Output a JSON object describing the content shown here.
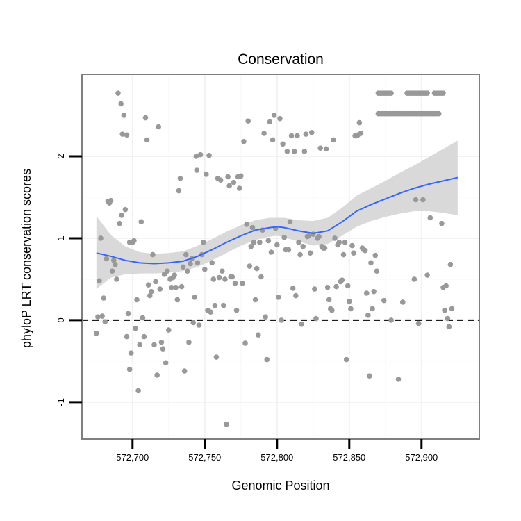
{
  "chart_data": {
    "type": "scatter",
    "title": "Conservation",
    "xlabel": "Genomic Position",
    "ylabel": "phyloP LRT conservation scores",
    "xlim": [
      572665,
      572940
    ],
    "ylim": [
      -1.45,
      3.0
    ],
    "x_ticks": [
      572700,
      572750,
      572800,
      572850,
      572900
    ],
    "x_tick_labels": [
      "572,700",
      "572,750",
      "572,800",
      "572,850",
      "572,900"
    ],
    "y_ticks": [
      -1,
      0,
      1,
      2
    ],
    "y_tick_labels": [
      "-1",
      "0",
      "1",
      "2"
    ],
    "grid": true,
    "reference_line": {
      "y": 0,
      "style": "dashed"
    },
    "colors": {
      "points": "#999999",
      "smooth": "#3366ff",
      "band": "#d9d9d9",
      "panel_border": "#7f7f7f",
      "grid": "#f2f2f2"
    },
    "points": [
      [
        572675,
        -0.16
      ],
      [
        572676,
        0.04
      ],
      [
        572677,
        0.48
      ],
      [
        572678,
        1.0
      ],
      [
        572679,
        0.05
      ],
      [
        572680,
        0.27
      ],
      [
        572681,
        -0.02
      ],
      [
        572682,
        0.75
      ],
      [
        572683,
        1.45
      ],
      [
        572684,
        1.43
      ],
      [
        572685,
        1.46
      ],
      [
        572686,
        0.6
      ],
      [
        572687,
        0.73
      ],
      [
        572688,
        0.68
      ],
      [
        572689,
        0.5
      ],
      [
        572690,
        2.77
      ],
      [
        572691,
        1.18
      ],
      [
        572692,
        2.64
      ],
      [
        572692.5,
        1.28
      ],
      [
        572693,
        2.27
      ],
      [
        572694,
        2.5
      ],
      [
        572695,
        1.35
      ],
      [
        572696,
        2.26
      ],
      [
        572696,
        -0.2
      ],
      [
        572697,
        0.08
      ],
      [
        572698,
        -0.6
      ],
      [
        572698,
        0.95
      ],
      [
        572699,
        -0.4
      ],
      [
        572700,
        0.95
      ],
      [
        572701,
        0.97
      ],
      [
        572702,
        -0.1
      ],
      [
        572703,
        0.25
      ],
      [
        572704,
        -0.86
      ],
      [
        572705,
        -0.3
      ],
      [
        572706,
        1.2
      ],
      [
        572707,
        0.03
      ],
      [
        572708,
        -0.2
      ],
      [
        572709,
        2.47
      ],
      [
        572710,
        2.2
      ],
      [
        572711,
        0.43
      ],
      [
        572712,
        0.3
      ],
      [
        572713,
        0.35
      ],
      [
        572714,
        0.8
      ],
      [
        572715,
        -0.3
      ],
      [
        572716,
        0.47
      ],
      [
        572717,
        -0.67
      ],
      [
        572718,
        2.36
      ],
      [
        572719,
        0.38
      ],
      [
        572720,
        -0.27
      ],
      [
        572721,
        -0.35
      ],
      [
        572722,
        0.56
      ],
      [
        572723,
        -0.52
      ],
      [
        572724,
        0.6
      ],
      [
        572725,
        -0.12
      ],
      [
        572726,
        0.5
      ],
      [
        572727,
        0.4
      ],
      [
        572728,
        0.52
      ],
      [
        572729,
        0.55
      ],
      [
        572730,
        0.4
      ],
      [
        572731,
        0.25
      ],
      [
        572732,
        1.58
      ],
      [
        572733,
        1.73
      ],
      [
        572734,
        0.41
      ],
      [
        572735,
        0.65
      ],
      [
        572736,
        -0.62
      ],
      [
        572737,
        0.8
      ],
      [
        572738,
        0.6
      ],
      [
        572739,
        -0.27
      ],
      [
        572740,
        0.69
      ],
      [
        572741,
        0.75
      ],
      [
        572742,
        -0.03
      ],
      [
        572743,
        0.28
      ],
      [
        572744,
        2.0
      ],
      [
        572744.5,
        1.83
      ],
      [
        572745,
        0.7
      ],
      [
        572746,
        -0.06
      ],
      [
        572747,
        2.02
      ],
      [
        572748,
        0.8
      ],
      [
        572749,
        0.95
      ],
      [
        572750,
        0.62
      ],
      [
        572751,
        1.78
      ],
      [
        572752,
        0.12
      ],
      [
        572753,
        2.01
      ],
      [
        572754,
        0.1
      ],
      [
        572755,
        0.7
      ],
      [
        572756,
        0.5
      ],
      [
        572757,
        0.18
      ],
      [
        572758,
        -0.45
      ],
      [
        572759,
        1.73
      ],
      [
        572760,
        0.52
      ],
      [
        572761,
        1.71
      ],
      [
        572762,
        0.6
      ],
      [
        572763,
        0.18
      ],
      [
        572764,
        0.5
      ],
      [
        572765,
        -1.27
      ],
      [
        572766,
        1.75
      ],
      [
        572767,
        1.64
      ],
      [
        572768,
        0.53
      ],
      [
        572769,
        0.53
      ],
      [
        572770,
        1.68
      ],
      [
        572771,
        0.45
      ],
      [
        572772,
        0.12
      ],
      [
        572773,
        1.75
      ],
      [
        572774,
        1.61
      ],
      [
        572775,
        1.76
      ],
      [
        572776,
        0.45
      ],
      [
        572777,
        2.18
      ],
      [
        572778,
        -0.28
      ],
      [
        572779,
        1.17
      ],
      [
        572780,
        2.43
      ],
      [
        572781,
        0.66
      ],
      [
        572782,
        0.9
      ],
      [
        572783,
        1.13
      ],
      [
        572784,
        0.95
      ],
      [
        572785,
        0.25
      ],
      [
        572786,
        0.63
      ],
      [
        572787,
        -0.18
      ],
      [
        572788,
        0.95
      ],
      [
        572789,
        0.53
      ],
      [
        572790,
        1.1
      ],
      [
        572791,
        2.28
      ],
      [
        572792,
        0.04
      ],
      [
        572793,
        -0.48
      ],
      [
        572794,
        0.97
      ],
      [
        572795,
        2.42
      ],
      [
        572796,
        0.83
      ],
      [
        572797,
        2.2
      ],
      [
        572798,
        2.5
      ],
      [
        572799,
        1.12
      ],
      [
        572800,
        0.92
      ],
      [
        572801,
        0.28
      ],
      [
        572802,
        2.46
      ],
      [
        572803,
        0.0
      ],
      [
        572804,
        2.15
      ],
      [
        572805,
        1.01
      ],
      [
        572806,
        0.86
      ],
      [
        572807,
        2.06
      ],
      [
        572808,
        0.86
      ],
      [
        572809,
        1.2
      ],
      [
        572810,
        2.25
      ],
      [
        572811,
        0.39
      ],
      [
        572812,
        2.06
      ],
      [
        572813,
        0.3
      ],
      [
        572814,
        2.25
      ],
      [
        572815,
        0.95
      ],
      [
        572816,
        0.8
      ],
      [
        572817,
        -0.05
      ],
      [
        572818,
        0.9
      ],
      [
        572819,
        2.06
      ],
      [
        572820,
        2.27
      ],
      [
        572821,
        1.02
      ],
      [
        572822,
        1.03
      ],
      [
        572823,
        0.82
      ],
      [
        572824,
        2.29
      ],
      [
        572825,
        1.05
      ],
      [
        572826,
        0.38
      ],
      [
        572827,
        0.02
      ],
      [
        572828,
        1.0
      ],
      [
        572829,
        1.02
      ],
      [
        572830,
        2.1
      ],
      [
        572831,
        0.9
      ],
      [
        572832,
        0.88
      ],
      [
        572833,
        0.88
      ],
      [
        572834,
        2.09
      ],
      [
        572835,
        0.4
      ],
      [
        572836,
        0.25
      ],
      [
        572837,
        0.14
      ],
      [
        572838,
        0.12
      ],
      [
        572839,
        2.2
      ],
      [
        572840,
        1.0
      ],
      [
        572841,
        0.41
      ],
      [
        572842,
        0.92
      ],
      [
        572843,
        0.95
      ],
      [
        572844,
        0.47
      ],
      [
        572845,
        0.49
      ],
      [
        572846,
        0.8
      ],
      [
        572847,
        0.95
      ],
      [
        572848,
        -0.48
      ],
      [
        572849,
        0.42
      ],
      [
        572850,
        0.23
      ],
      [
        572851,
        0.14
      ],
      [
        572852,
        0.91
      ],
      [
        572853,
        0.82
      ],
      [
        572854,
        2.25
      ],
      [
        572855,
        2.25
      ],
      [
        572856,
        2.26
      ],
      [
        572857,
        2.41
      ],
      [
        572858,
        2.28
      ],
      [
        572859,
        0.88
      ],
      [
        572860,
        0.86
      ],
      [
        572861,
        0.85
      ],
      [
        572862,
        0.33
      ],
      [
        572863,
        0.06
      ],
      [
        572864,
        -0.68
      ],
      [
        572865,
        0.7
      ],
      [
        572866,
        0.14
      ],
      [
        572867,
        0.35
      ],
      [
        572868,
        0.79
      ],
      [
        572869,
        0.6
      ],
      [
        572870,
        2.52
      ],
      [
        572874,
        0.24
      ],
      [
        572879,
        0.0
      ],
      [
        572884,
        -0.72
      ],
      [
        572887,
        0.22
      ],
      [
        572895,
        0.5
      ],
      [
        572896,
        1.47
      ],
      [
        572898,
        -0.04
      ],
      [
        572901,
        1.47
      ],
      [
        572904,
        0.55
      ],
      [
        572906,
        1.25
      ],
      [
        572914,
        1.18
      ],
      [
        572915,
        0.4
      ],
      [
        572916,
        0.12
      ],
      [
        572917,
        0.42
      ],
      [
        572918,
        0.02
      ],
      [
        572919,
        -0.08
      ],
      [
        572920,
        0.68
      ],
      [
        572921,
        0.14
      ],
      [
        572870,
        2.77
      ],
      [
        572871,
        2.77
      ],
      [
        572872,
        2.77
      ],
      [
        572873,
        2.77
      ],
      [
        572874,
        2.77
      ],
      [
        572875,
        2.77
      ],
      [
        572876,
        2.77
      ],
      [
        572877,
        2.77
      ],
      [
        572878,
        2.77
      ],
      [
        572879,
        2.77
      ],
      [
        572871,
        2.52
      ],
      [
        572872,
        2.52
      ],
      [
        572873,
        2.52
      ],
      [
        572874,
        2.52
      ],
      [
        572875,
        2.52
      ],
      [
        572876,
        2.52
      ],
      [
        572877,
        2.52
      ],
      [
        572878,
        2.52
      ],
      [
        572879,
        2.52
      ],
      [
        572880,
        2.52
      ],
      [
        572881,
        2.52
      ],
      [
        572882,
        2.52
      ],
      [
        572883,
        2.52
      ],
      [
        572884,
        2.52
      ],
      [
        572885,
        2.52
      ],
      [
        572886,
        2.52
      ],
      [
        572887,
        2.52
      ],
      [
        572888,
        2.52
      ],
      [
        572889,
        2.52
      ],
      [
        572890,
        2.52
      ],
      [
        572891,
        2.52
      ],
      [
        572892,
        2.52
      ],
      [
        572893,
        2.52
      ],
      [
        572894,
        2.52
      ],
      [
        572895,
        2.52
      ],
      [
        572896,
        2.52
      ],
      [
        572897,
        2.52
      ],
      [
        572898,
        2.52
      ],
      [
        572899,
        2.52
      ],
      [
        572900,
        2.52
      ],
      [
        572901,
        2.52
      ],
      [
        572902,
        2.52
      ],
      [
        572903,
        2.52
      ],
      [
        572904,
        2.52
      ],
      [
        572905,
        2.52
      ],
      [
        572906,
        2.52
      ],
      [
        572907,
        2.52
      ],
      [
        572908,
        2.52
      ],
      [
        572909,
        2.52
      ],
      [
        572910,
        2.52
      ],
      [
        572911,
        2.52
      ],
      [
        572912,
        2.52
      ],
      [
        572890,
        2.77
      ],
      [
        572891,
        2.77
      ],
      [
        572892,
        2.77
      ],
      [
        572893,
        2.77
      ],
      [
        572894,
        2.77
      ],
      [
        572895,
        2.77
      ],
      [
        572896,
        2.77
      ],
      [
        572897,
        2.77
      ],
      [
        572898,
        2.77
      ],
      [
        572899,
        2.77
      ],
      [
        572900,
        2.77
      ],
      [
        572901,
        2.77
      ],
      [
        572902,
        2.77
      ],
      [
        572903,
        2.77
      ],
      [
        572904,
        2.77
      ],
      [
        572909,
        2.77
      ],
      [
        572910,
        2.77
      ],
      [
        572911,
        2.77
      ],
      [
        572912,
        2.77
      ],
      [
        572913,
        2.77
      ],
      [
        572914,
        2.77
      ],
      [
        572915,
        2.77
      ]
    ],
    "smooth": {
      "x": [
        572675,
        572685,
        572695,
        572705,
        572715,
        572725,
        572735,
        572745,
        572755,
        572765,
        572775,
        572785,
        572795,
        572800,
        572805,
        572815,
        572825,
        572835,
        572845,
        572855,
        572865,
        572875,
        572885,
        572895,
        572905,
        572915,
        572925
      ],
      "y": [
        0.82,
        0.78,
        0.73,
        0.7,
        0.69,
        0.7,
        0.72,
        0.78,
        0.86,
        0.95,
        1.03,
        1.1,
        1.13,
        1.14,
        1.13,
        1.09,
        1.06,
        1.09,
        1.2,
        1.33,
        1.41,
        1.48,
        1.55,
        1.61,
        1.66,
        1.7,
        1.74
      ],
      "lower": [
        0.38,
        0.52,
        0.56,
        0.57,
        0.57,
        0.58,
        0.6,
        0.65,
        0.73,
        0.82,
        0.91,
        0.98,
        1.02,
        1.03,
        1.01,
        0.96,
        0.91,
        0.93,
        1.03,
        1.14,
        1.21,
        1.26,
        1.3,
        1.33,
        1.33,
        1.31,
        1.28
      ],
      "upper": [
        1.27,
        1.04,
        0.9,
        0.83,
        0.81,
        0.82,
        0.84,
        0.91,
        0.99,
        1.08,
        1.16,
        1.22,
        1.25,
        1.25,
        1.25,
        1.22,
        1.21,
        1.25,
        1.37,
        1.52,
        1.61,
        1.7,
        1.8,
        1.89,
        1.99,
        2.09,
        2.19
      ]
    }
  }
}
